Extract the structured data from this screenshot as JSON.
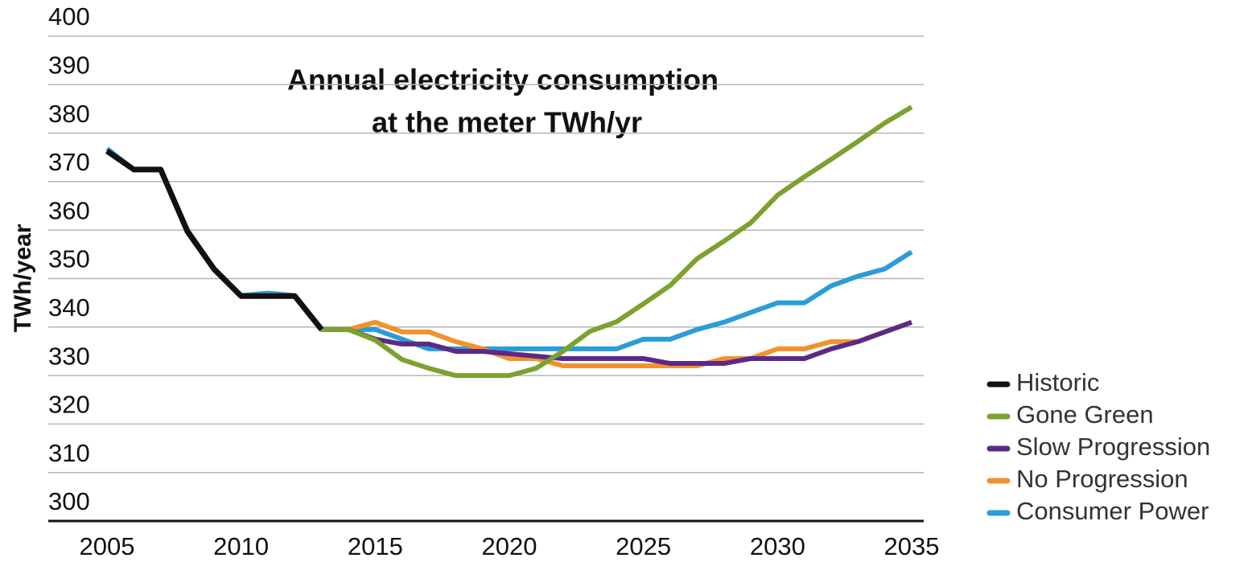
{
  "chart_data": {
    "type": "line",
    "title": [
      "Annual electricity consumption",
      "at the meter TWh/yr"
    ],
    "y_label": "TWh/year",
    "x": [
      2005,
      2006,
      2007,
      2008,
      2009,
      2010,
      2011,
      2012,
      2013,
      2014,
      2015,
      2016,
      2017,
      2018,
      2019,
      2020,
      2021,
      2022,
      2023,
      2024,
      2025,
      2026,
      2027,
      2028,
      2029,
      2030,
      2031,
      2032,
      2033,
      2034,
      2035
    ],
    "xlim": [
      2005,
      2035
    ],
    "xticks": [
      2005,
      2010,
      2015,
      2020,
      2025,
      2030,
      2035
    ],
    "ylim": [
      300,
      400
    ],
    "yticks": [
      300,
      310,
      320,
      330,
      340,
      350,
      360,
      370,
      380,
      390,
      400
    ],
    "grid": true,
    "legend": "lower right",
    "series": [
      {
        "name": "Historic",
        "color": "#111111",
        "values": [
          376.3,
          372.5,
          372.5,
          359.7,
          351.9,
          346.4,
          346.4,
          346.4,
          339.5,
          null,
          null,
          null,
          null,
          null,
          null,
          null,
          null,
          null,
          null,
          null,
          null,
          null,
          null,
          null,
          null,
          null,
          null,
          null,
          null,
          null,
          null
        ]
      },
      {
        "name": "Gone Green",
        "color": "#7ca22e",
        "values": [
          null,
          null,
          null,
          null,
          null,
          null,
          null,
          null,
          339.5,
          339.5,
          337.3,
          333.3,
          331.5,
          330,
          330,
          330,
          331.5,
          335,
          339.1,
          341.1,
          344.8,
          348.6,
          354.1,
          357.7,
          361.5,
          367.2,
          371,
          374.6,
          378.3,
          382.1,
          385.4
        ]
      },
      {
        "name": "Slow Progression",
        "color": "#5b2a86",
        "values": [
          null,
          null,
          null,
          null,
          null,
          null,
          null,
          null,
          339.5,
          339.5,
          337.5,
          336.5,
          336.5,
          335,
          335,
          334.5,
          334,
          333.5,
          333.5,
          333.5,
          333.5,
          332.5,
          332.5,
          332.5,
          333.5,
          333.5,
          333.5,
          335.5,
          337,
          339,
          341
        ]
      },
      {
        "name": "No Progression",
        "color": "#f2922c",
        "values": [
          null,
          null,
          null,
          null,
          null,
          null,
          null,
          null,
          339.5,
          339.5,
          341,
          339,
          339,
          337,
          335.5,
          333.5,
          333.5,
          332,
          332,
          332,
          332,
          332,
          332,
          333.5,
          333.5,
          335.5,
          335.5,
          337,
          337,
          339,
          341
        ]
      },
      {
        "name": "Consumer Power",
        "color": "#2b9cd8",
        "values": [
          376.8,
          372.5,
          372.5,
          360,
          352,
          346.5,
          347,
          346.5,
          339.5,
          339.5,
          339.5,
          337.5,
          335.5,
          335.5,
          335.5,
          335.5,
          335.5,
          335.5,
          335.5,
          335.5,
          337.5,
          337.5,
          339.5,
          341,
          343,
          345,
          345,
          348.5,
          350.5,
          352,
          355.5
        ]
      }
    ]
  }
}
